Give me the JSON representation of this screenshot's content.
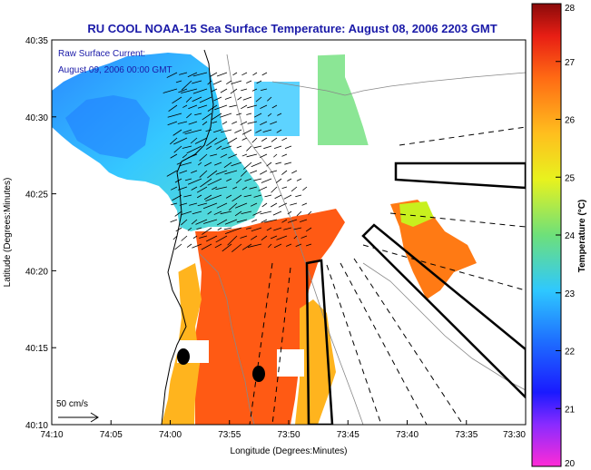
{
  "header": {
    "title": "RU COOL  NOAA-15  Sea Surface Temperature:  August 08, 2006 2203 GMT"
  },
  "annotation": {
    "line1": "Raw Surface Current:",
    "line2": "August 09, 2006 00:00 GMT"
  },
  "scale_bar": {
    "label": "50 cm/s"
  },
  "axes": {
    "xlabel": "Longitude (Degrees:Minutes)",
    "ylabel": "Latitude (Degrees:Minutes)",
    "xticks": [
      "74:10",
      "74:05",
      "74:00",
      "73:55",
      "73:50",
      "73:45",
      "73:40",
      "73:35",
      "73:30"
    ],
    "yticks": [
      "40:35",
      "40:30",
      "40:25",
      "40:20",
      "40:15",
      "40:10"
    ]
  },
  "colorbar": {
    "label": "Temperature (°C)",
    "ticks": [
      "28",
      "27",
      "26",
      "25",
      "24",
      "23",
      "22",
      "21",
      "20"
    ],
    "min": 20,
    "max": 28
  },
  "colors": {
    "title_text": "#1a1aa8",
    "land": "#ffffff",
    "warm": "#ff5a14",
    "mild": "#ffb41e",
    "cool": "#35c8ff",
    "cold": "#1e90ff"
  }
}
